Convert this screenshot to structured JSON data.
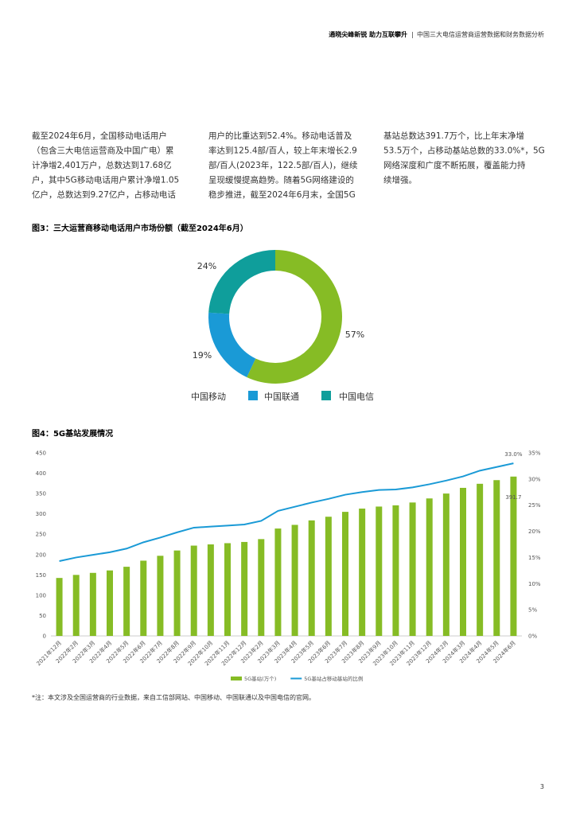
{
  "header": {
    "title": "通晓尖峰新锐 助力互联攀升",
    "subtitle": "中国三大电信运营商运营数据和财务数据分析"
  },
  "body": {
    "columns": [
      [
        "截至2024年6月，全国移动电话用户",
        "（包含三大电信运营商及中国广电）累",
        "计净增2,401万户，总数达到17.68亿",
        "户，其中5G移动电话用户累计净增1.05",
        "亿户，总数达到9.27亿户，占移动电话"
      ],
      [
        "用户的比重达到52.4%。移动电话普及",
        "率达到125.4部/百人，较上年末增长2.9",
        "部/百人(2023年，122.5部/百人)，继续",
        "呈现缓慢提高趋势。随着5G网络建设的",
        "稳步推进，截至2024年6月末，全国5G"
      ],
      [
        "基站总数达391.7万个，比上年末净增",
        "53.5万个，占移动基站总数的33.0%*，5G",
        "网络深度和广度不断拓展，覆盖能力持",
        "续增强。"
      ]
    ]
  },
  "chart_data": [
    {
      "type": "pie",
      "title": "图3：三大运营商移动电话用户市场份额（截至2024年6月）",
      "categories": [
        "中国移动",
        "中国联通",
        "中国电信"
      ],
      "values": [
        57,
        19,
        24
      ],
      "value_labels": [
        "57%",
        "19%",
        "24%"
      ],
      "colors": [
        "#86bc25",
        "#1a9ad6",
        "#0f9e9b"
      ],
      "donut": true
    },
    {
      "type": "bar",
      "title": "图4：5G基站发展情况",
      "categories": [
        "2021年12月",
        "2022年2月",
        "2022年3月",
        "2022年4月",
        "2022年5月",
        "2022年6月",
        "2022年7月",
        "2022年8月",
        "2022年9月",
        "2022年10月",
        "2022年11月",
        "2022年12月",
        "2023年2月",
        "2023年3月",
        "2023年4月",
        "2023年5月",
        "2023年6月",
        "2023年7月",
        "2023年8月",
        "2023年9月",
        "2023年10月",
        "2023年11月",
        "2023年12月",
        "2024年2月",
        "2024年3月",
        "2024年4月",
        "2024年5月",
        "2024年6月"
      ],
      "series": [
        {
          "name": "5G基站(万个)",
          "type": "bar",
          "color": "#86bc25",
          "values": [
            142.5,
            150,
            155,
            161,
            170,
            185,
            197,
            210,
            222,
            225,
            228,
            231,
            238,
            264,
            273,
            284,
            293,
            305,
            313,
            318,
            321,
            328,
            338,
            350,
            364,
            374,
            383,
            391.7
          ]
        },
        {
          "name": "5G基站占移动基站的比例",
          "type": "line",
          "axis": "y2",
          "color": "#1a9ad6",
          "values": [
            14.3,
            15.0,
            15.5,
            16.0,
            16.7,
            17.9,
            18.8,
            19.8,
            20.7,
            20.9,
            21.1,
            21.3,
            22.0,
            23.9,
            24.7,
            25.5,
            26.2,
            27.0,
            27.5,
            27.9,
            28.0,
            28.4,
            29.0,
            29.7,
            30.5,
            31.6,
            32.3,
            33.0
          ],
          "value_labels": [
            null,
            null,
            null,
            null,
            null,
            null,
            null,
            null,
            null,
            null,
            null,
            null,
            null,
            null,
            null,
            null,
            null,
            null,
            null,
            null,
            null,
            null,
            null,
            null,
            null,
            null,
            null,
            "33.0%"
          ]
        }
      ],
      "ylim": [
        0,
        450
      ],
      "yticks": [
        0,
        50,
        100,
        150,
        200,
        250,
        300,
        350,
        400,
        450
      ],
      "y2lim": [
        0,
        35
      ],
      "y2ticks": [
        {
          "value": 0,
          "label": "0%"
        },
        {
          "value": 5,
          "label": "5%"
        },
        {
          "value": 10,
          "label": "10%"
        },
        {
          "value": 15,
          "label": "15%"
        },
        {
          "value": 20,
          "label": "20%"
        },
        {
          "value": 25,
          "label": "25%"
        },
        {
          "value": 30,
          "label": "30%"
        },
        {
          "value": 35,
          "label": "35%"
        }
      ],
      "grid": false,
      "last_bar_label": true
    }
  ],
  "footnote": "*注：本文涉及全国运营商的行业数据，来自工信部网站、中国移动、中国联通以及中国电信的官网。",
  "page_number": "3"
}
